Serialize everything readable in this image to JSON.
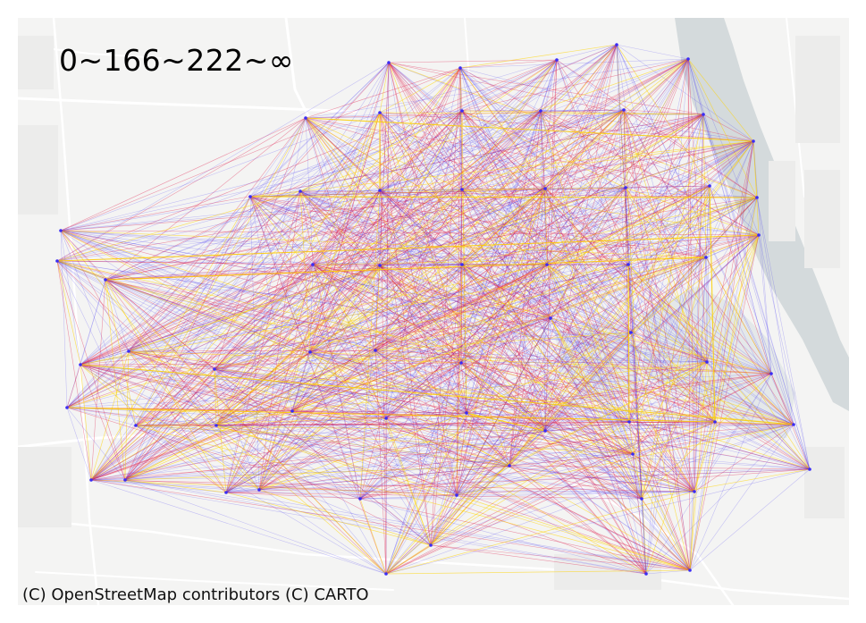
{
  "map": {
    "legend_title": "0~166~222~∞",
    "attribution": "(C) OpenStreetMap contributors (C) CARTO",
    "basemap": "CARTO light (Positron)",
    "colors": {
      "background": "#f4f4f3",
      "water": "#d4dadc",
      "roads": "#ffffff",
      "low": "#3b2cf5",
      "mid": "#e0204d",
      "high": "#ffd400"
    },
    "edge_classes": [
      {
        "range": "0~166",
        "color": "#3b2cf5"
      },
      {
        "range": "166~222",
        "color": "#e0204d"
      },
      {
        "range": "222~∞",
        "color": "#ffd400"
      }
    ]
  }
}
